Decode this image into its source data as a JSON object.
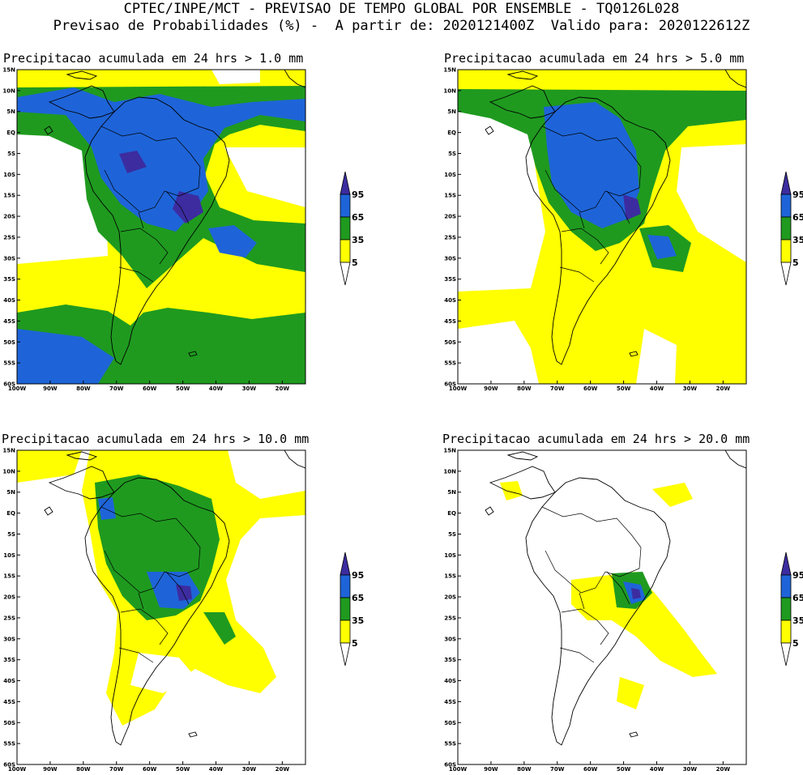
{
  "header": {
    "line1": "CPTEC/INPE/MCT - PREVISAO DE TEMPO GLOBAL POR ENSEMBLE - TQ0126L028",
    "line2": "Previsao de Probabilidades (%) -  A partir de: 2020121400Z  Valido para: 2020122612Z"
  },
  "colors": {
    "yellow": "#ffff00",
    "green": "#1f9a1f",
    "blue": "#1e64d8",
    "purple": "#3c2ca0",
    "white": "#ffffff",
    "coast": "#000000"
  },
  "axes": {
    "lat_labels": [
      "15N",
      "10N",
      "5N",
      "EQ",
      "5S",
      "10S",
      "15S",
      "20S",
      "25S",
      "30S",
      "35S",
      "40S",
      "45S",
      "50S",
      "55S",
      "60S"
    ],
    "lon_labels": [
      "100W",
      "90W",
      "80W",
      "70W",
      "60W",
      "50W",
      "40W",
      "30W",
      "20W"
    ]
  },
  "colorbar": {
    "labels": [
      "95",
      "65",
      "35",
      "5"
    ],
    "classes": [
      "5-35",
      "35-65",
      "65-95",
      ">95"
    ]
  },
  "panels": [
    {
      "id": "p1",
      "title": "Precipitacao acumulada em 24 hrs > 1.0 mm",
      "threshold_mm": 1.0
    },
    {
      "id": "p2",
      "title": "Precipitacao acumulada em 24 hrs > 5.0 mm",
      "threshold_mm": 5.0
    },
    {
      "id": "p3",
      "title": "Precipitacao acumulada em 24 hrs > 10.0 mm",
      "threshold_mm": 10.0
    },
    {
      "id": "p4",
      "title": "Precipitacao acumulada em 24 hrs > 20.0 mm",
      "threshold_mm": 20.0
    }
  ]
}
